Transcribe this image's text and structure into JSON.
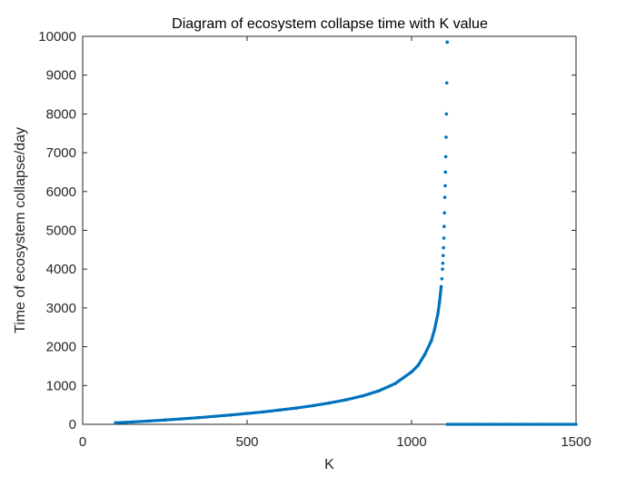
{
  "chart_data": {
    "type": "scatter",
    "title": "Diagram of ecosystem collapse time with K value",
    "xlabel": "K",
    "ylabel": "Time of ecosystem collapse/day",
    "xlim": [
      0,
      1500
    ],
    "ylim": [
      0,
      10000
    ],
    "xticks": [
      0,
      500,
      1000,
      1500
    ],
    "xtick_labels": [
      "0",
      "500",
      "1000",
      "1500"
    ],
    "yticks": [
      0,
      1000,
      2000,
      3000,
      4000,
      5000,
      6000,
      7000,
      8000,
      9000,
      10000
    ],
    "ytick_labels": [
      "0",
      "1000",
      "2000",
      "3000",
      "4000",
      "5000",
      "6000",
      "7000",
      "8000",
      "9000",
      "10000"
    ],
    "grid": false,
    "legend": "none",
    "series": [
      {
        "color": "#0072BD",
        "x": [
          100,
          150,
          200,
          250,
          300,
          350,
          400,
          450,
          500,
          550,
          600,
          650,
          700,
          750,
          800,
          850,
          900,
          950,
          1000,
          1020,
          1040,
          1060,
          1070,
          1080,
          1085,
          1090,
          1092,
          1094,
          1095,
          1096,
          1097,
          1098,
          1099,
          1100,
          1101,
          1102,
          1103,
          1104,
          1105,
          1106,
          1107,
          1108,
          1108.5
        ],
        "y": [
          40,
          60,
          85,
          110,
          140,
          170,
          205,
          240,
          280,
          320,
          370,
          420,
          480,
          550,
          630,
          730,
          860,
          1050,
          1350,
          1520,
          1800,
          2150,
          2450,
          2850,
          3150,
          3550,
          3750,
          4000,
          4150,
          4350,
          4550,
          4800,
          5100,
          5450,
          5850,
          6150,
          6500,
          6900,
          7400,
          8000,
          8800,
          9850,
          9850
        ]
      },
      {
        "color": "#0072BD",
        "x": [
          1109,
          1150,
          1200,
          1250,
          1300,
          1350,
          1400,
          1450,
          1500
        ],
        "y": [
          0,
          0,
          0,
          0,
          0,
          0,
          0,
          0,
          0
        ]
      }
    ]
  }
}
